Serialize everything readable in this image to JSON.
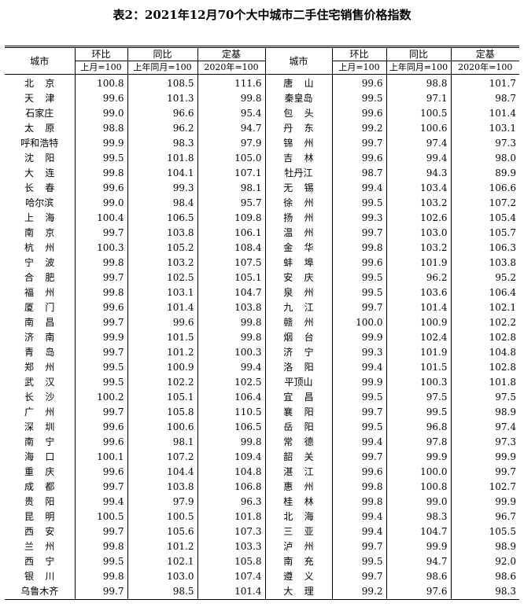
{
  "header": {
    "title": "表2：2021年12月70个大中城市二手住宅销售价格指数",
    "city": "城市",
    "mom": "环比",
    "yoy": "同比",
    "fixed": "定基",
    "mom_base": "上月=100",
    "yoy_base": "上年同月=100",
    "fixed_base": "2020年=100"
  },
  "left": [
    [
      "北京",
      "100.8",
      "108.5",
      "111.6"
    ],
    [
      "天津",
      "99.6",
      "101.3",
      "99.8"
    ],
    [
      "石家庄",
      "99.0",
      "96.6",
      "95.4"
    ],
    [
      "太原",
      "98.8",
      "96.2",
      "94.7"
    ],
    [
      "呼和浩特",
      "99.9",
      "98.3",
      "97.9"
    ],
    [
      "沈阳",
      "99.5",
      "101.8",
      "105.0"
    ],
    [
      "大连",
      "99.8",
      "104.1",
      "107.1"
    ],
    [
      "长春",
      "99.6",
      "99.3",
      "98.1"
    ],
    [
      "哈尔滨",
      "99.0",
      "98.4",
      "95.7"
    ],
    [
      "上海",
      "100.4",
      "106.5",
      "109.8"
    ],
    [
      "南京",
      "99.7",
      "103.8",
      "106.1"
    ],
    [
      "杭州",
      "100.3",
      "105.2",
      "108.4"
    ],
    [
      "宁波",
      "99.8",
      "103.2",
      "107.5"
    ],
    [
      "合肥",
      "99.7",
      "102.5",
      "105.1"
    ],
    [
      "福州",
      "99.8",
      "103.1",
      "104.7"
    ],
    [
      "厦门",
      "99.6",
      "101.4",
      "103.8"
    ],
    [
      "南昌",
      "99.7",
      "99.6",
      "99.8"
    ],
    [
      "济南",
      "99.9",
      "101.5",
      "99.8"
    ],
    [
      "青岛",
      "99.7",
      "101.2",
      "100.3"
    ],
    [
      "郑州",
      "99.5",
      "100.9",
      "99.4"
    ],
    [
      "武汉",
      "99.5",
      "102.2",
      "102.5"
    ],
    [
      "长沙",
      "100.2",
      "105.1",
      "106.4"
    ],
    [
      "广州",
      "99.7",
      "105.8",
      "110.5"
    ],
    [
      "深圳",
      "99.6",
      "100.6",
      "106.5"
    ],
    [
      "南宁",
      "99.6",
      "98.1",
      "99.8"
    ],
    [
      "海口",
      "100.1",
      "107.2",
      "109.4"
    ],
    [
      "重庆",
      "99.6",
      "104.4",
      "104.8"
    ],
    [
      "成都",
      "99.7",
      "103.8",
      "106.8"
    ],
    [
      "贵阳",
      "99.4",
      "97.9",
      "96.3"
    ],
    [
      "昆明",
      "100.5",
      "100.5",
      "101.8"
    ],
    [
      "西安",
      "99.7",
      "105.6",
      "107.3"
    ],
    [
      "兰州",
      "99.8",
      "101.2",
      "103.3"
    ],
    [
      "西宁",
      "99.5",
      "102.1",
      "105.8"
    ],
    [
      "银川",
      "99.8",
      "103.0",
      "107.4"
    ],
    [
      "乌鲁木齐",
      "99.7",
      "98.5",
      "101.4"
    ]
  ],
  "right": [
    [
      "唐山",
      "99.6",
      "98.8",
      "101.7"
    ],
    [
      "秦皇岛",
      "99.5",
      "97.1",
      "98.7"
    ],
    [
      "包头",
      "99.6",
      "100.5",
      "101.4"
    ],
    [
      "丹东",
      "99.2",
      "100.6",
      "103.1"
    ],
    [
      "锦州",
      "99.7",
      "97.4",
      "97.3"
    ],
    [
      "吉林",
      "99.6",
      "99.4",
      "98.0"
    ],
    [
      "牡丹江",
      "98.7",
      "94.3",
      "89.9"
    ],
    [
      "无锡",
      "99.4",
      "103.4",
      "106.6"
    ],
    [
      "徐州",
      "99.5",
      "103.2",
      "107.2"
    ],
    [
      "扬州",
      "99.3",
      "102.6",
      "105.4"
    ],
    [
      "温州",
      "99.7",
      "103.0",
      "105.7"
    ],
    [
      "金华",
      "99.8",
      "103.2",
      "106.3"
    ],
    [
      "蚌埠",
      "99.6",
      "101.9",
      "103.8"
    ],
    [
      "安庆",
      "99.5",
      "96.2",
      "95.2"
    ],
    [
      "泉州",
      "99.5",
      "103.6",
      "106.4"
    ],
    [
      "九江",
      "99.7",
      "101.4",
      "102.1"
    ],
    [
      "赣州",
      "100.0",
      "100.9",
      "102.2"
    ],
    [
      "烟台",
      "99.9",
      "102.4",
      "102.8"
    ],
    [
      "济宁",
      "99.3",
      "101.9",
      "104.8"
    ],
    [
      "洛阳",
      "99.4",
      "101.5",
      "102.8"
    ],
    [
      "平顶山",
      "99.9",
      "100.3",
      "101.8"
    ],
    [
      "宜昌",
      "99.5",
      "97.5",
      "97.5"
    ],
    [
      "襄阳",
      "99.7",
      "99.5",
      "98.9"
    ],
    [
      "岳阳",
      "99.5",
      "96.8",
      "97.4"
    ],
    [
      "常德",
      "99.4",
      "97.8",
      "97.3"
    ],
    [
      "韶关",
      "99.7",
      "99.9",
      "99.9"
    ],
    [
      "湛江",
      "99.6",
      "100.0",
      "99.7"
    ],
    [
      "惠州",
      "99.8",
      "100.8",
      "102.7"
    ],
    [
      "桂林",
      "99.8",
      "99.0",
      "99.9"
    ],
    [
      "北海",
      "99.4",
      "98.3",
      "96.7"
    ],
    [
      "三亚",
      "99.4",
      "104.7",
      "105.5"
    ],
    [
      "泸州",
      "99.7",
      "99.9",
      "98.9"
    ],
    [
      "南充",
      "99.5",
      "94.7",
      "92.0"
    ],
    [
      "遵义",
      "99.7",
      "98.6",
      "98.6"
    ],
    [
      "大理",
      "99.2",
      "97.6",
      "98.3"
    ]
  ]
}
